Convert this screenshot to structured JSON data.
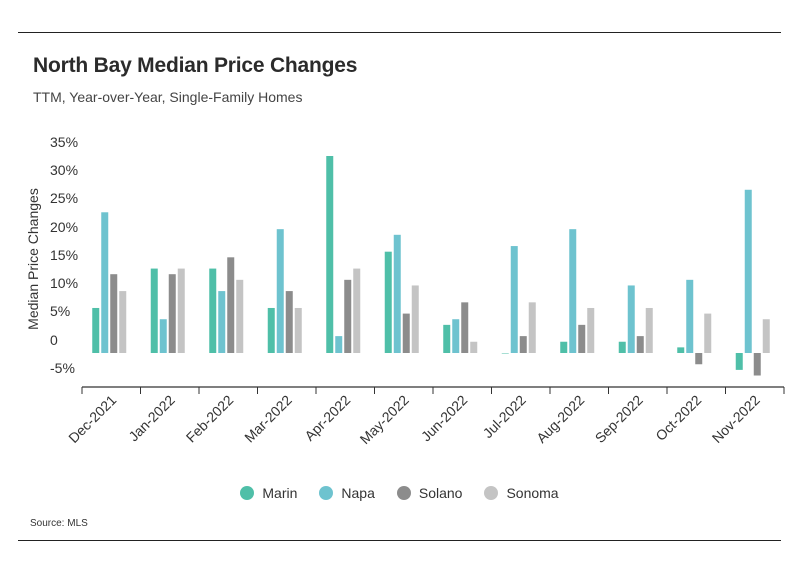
{
  "header": {
    "title": "North Bay Median Price Changes",
    "subtitle": "TTM, Year-over-Year, Single-Family Homes"
  },
  "source": "Source: MLS",
  "chart_data": {
    "type": "bar",
    "ylabel": "Median Price Changes",
    "ylim": [
      -5,
      35
    ],
    "y_ticks": [
      "35%",
      "30%",
      "25%",
      "20%",
      "15%",
      "10%",
      "5%",
      "0",
      "-5%"
    ],
    "categories": [
      "Dec-2021",
      "Jan-2022",
      "Feb-2022",
      "Mar-2022",
      "Apr-2022",
      "May-2022",
      "Jun-2022",
      "Jul-2022",
      "Aug-2022",
      "Sep-2022",
      "Oct-2022",
      "Nov-2022"
    ],
    "series": [
      {
        "name": "Marin",
        "color": "#4fbfa8",
        "values": [
          8,
          15,
          15,
          8,
          35,
          18,
          5,
          0,
          2,
          2,
          1,
          -3
        ]
      },
      {
        "name": "Napa",
        "color": "#6ec3cf",
        "values": [
          25,
          6,
          11,
          22,
          3,
          21,
          6,
          19,
          22,
          12,
          13,
          29
        ]
      },
      {
        "name": "Solano",
        "color": "#8c8c8c",
        "values": [
          14,
          14,
          17,
          11,
          13,
          7,
          9,
          3,
          5,
          3,
          -2,
          -4
        ]
      },
      {
        "name": "Sonoma",
        "color": "#c4c4c4",
        "values": [
          11,
          15,
          13,
          8,
          15,
          12,
          2,
          9,
          8,
          8,
          7,
          6
        ]
      }
    ],
    "legend_position": "bottom-center",
    "grid": false
  }
}
